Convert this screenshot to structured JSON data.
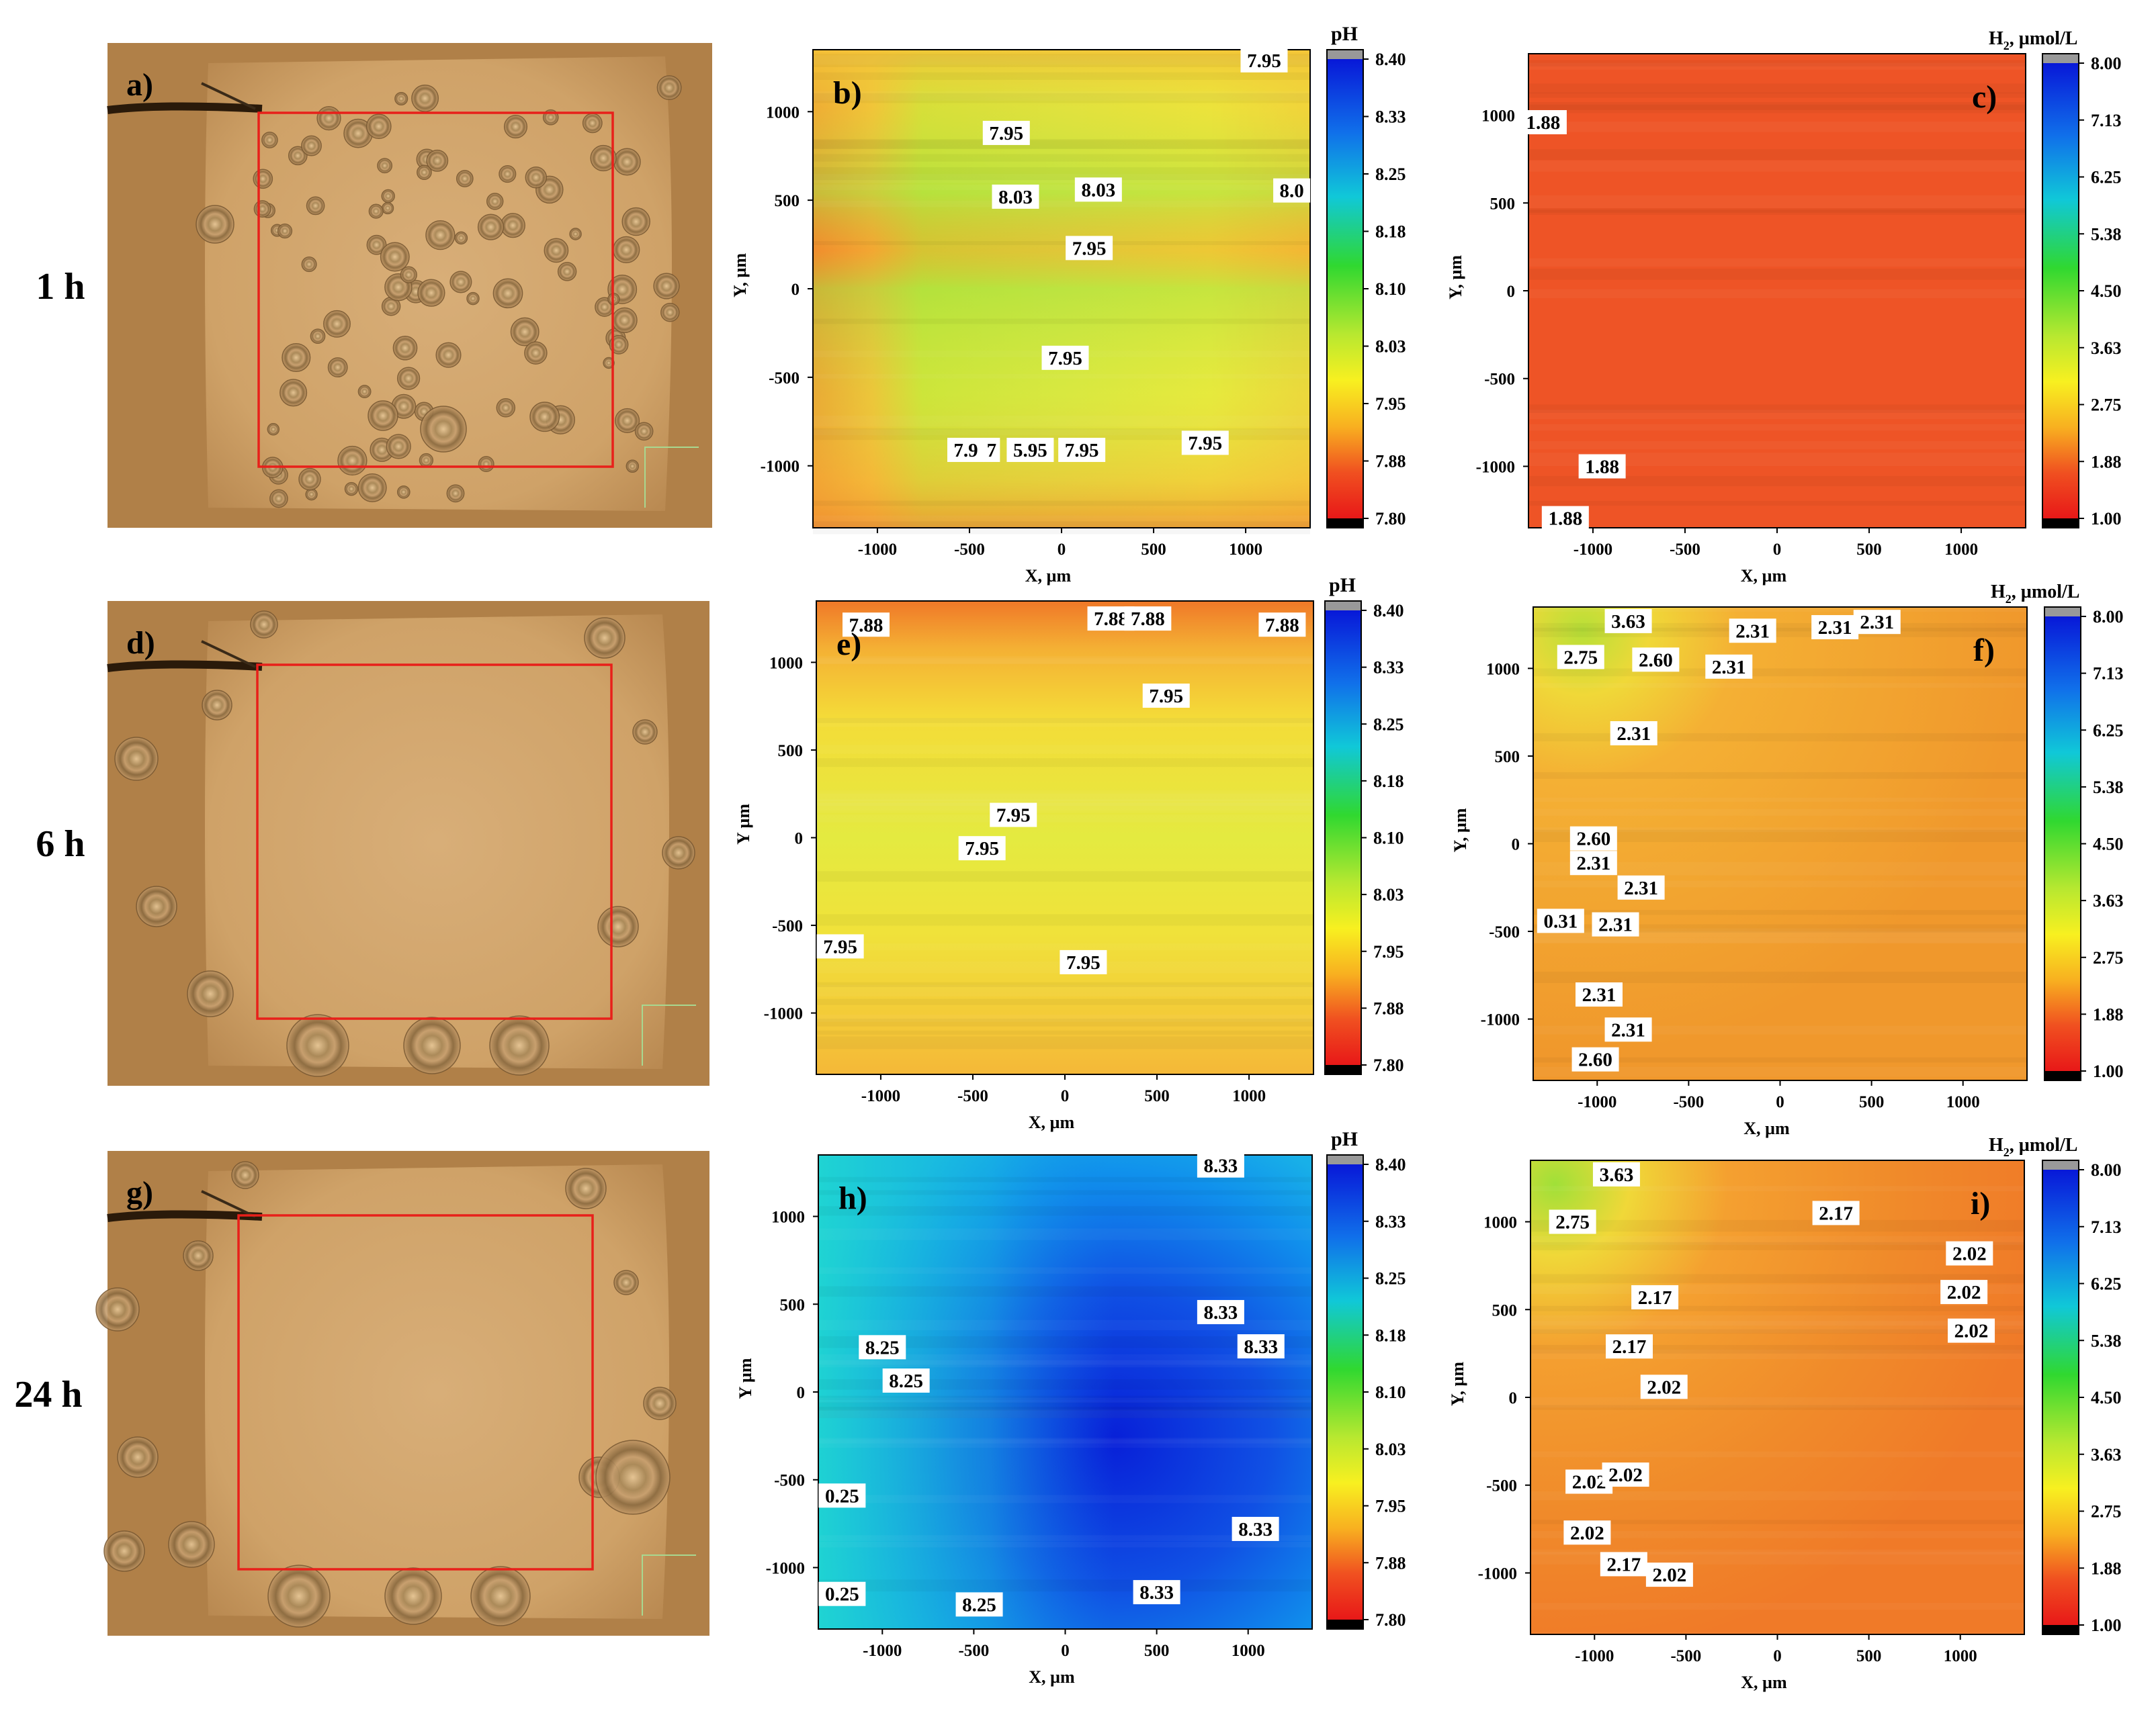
{
  "figure": {
    "description_free": true,
    "time_labels": [
      "1 h",
      "6 h",
      "24 h"
    ]
  },
  "photo_panels": [
    {
      "label": "a)",
      "time": "1 h",
      "bubbles": "many"
    },
    {
      "label": "d)",
      "time": "6 h",
      "bubbles": "perimeter"
    },
    {
      "label": "g)",
      "time": "24 h",
      "bubbles": "perimeter"
    }
  ],
  "colorbars": {
    "ph": {
      "title": "pH",
      "ticks": [
        "8.40",
        "8.33",
        "8.25",
        "8.18",
        "8.10",
        "8.03",
        "7.95",
        "7.88",
        "7.80"
      ],
      "min": 7.8,
      "max": 8.4
    },
    "h2": {
      "title_main": "H",
      "title_sub": "2",
      "title_rest": ", µmol/L",
      "ticks": [
        "8.00",
        "7.13",
        "6.25",
        "5.38",
        "4.50",
        "3.63",
        "2.75",
        "1.88",
        "1.00"
      ],
      "min": 1.0,
      "max": 8.0
    }
  },
  "colors": {
    "photo_base": "#c89a5e",
    "photo_inner": "#d4a870",
    "roi_box": "#e8201a",
    "map_orange": "#f08a28",
    "map_red_orange": "#ee5a24"
  },
  "chart_data": [
    {
      "id": "b",
      "type": "heatmap",
      "panel_label": "b)",
      "variable": "pH",
      "colorbar": "ph",
      "xlabel": "X, µm",
      "ylabel": "Y, µm",
      "xlim": [
        -1350,
        1350
      ],
      "ylim": [
        -1350,
        1350
      ],
      "xticks": [
        -1000,
        -500,
        0,
        500,
        1000
      ],
      "yticks": [
        -1000,
        -500,
        0,
        500,
        1000
      ],
      "show_xlabel": true,
      "annotations": [
        {
          "text": "7.95",
          "x": 1100,
          "y": 1290
        },
        {
          "text": "7.95",
          "x": -300,
          "y": 880
        },
        {
          "text": "8.03",
          "x": -250,
          "y": 520
        },
        {
          "text": "8.03",
          "x": 200,
          "y": 560
        },
        {
          "text": "8.0",
          "x": 1250,
          "y": 555
        },
        {
          "text": "7.95",
          "x": 150,
          "y": 230
        },
        {
          "text": "7.95",
          "x": 20,
          "y": -390
        },
        {
          "text": "7.9",
          "x": -520,
          "y": -910
        },
        {
          "text": "7",
          "x": -380,
          "y": -910
        },
        {
          "text": "5.95",
          "x": -170,
          "y": -910
        },
        {
          "text": "7.95",
          "x": 110,
          "y": -910
        },
        {
          "text": "7.95",
          "x": 780,
          "y": -870
        }
      ]
    },
    {
      "id": "c",
      "type": "heatmap",
      "panel_label": "c)",
      "variable": "H2",
      "colorbar": "h2",
      "xlabel": "X, µm",
      "ylabel": "Y, µm",
      "xlim": [
        -1350,
        1350
      ],
      "ylim": [
        -1350,
        1350
      ],
      "xticks": [
        -1000,
        -500,
        0,
        500,
        1000
      ],
      "yticks": [
        -1000,
        -500,
        0,
        500,
        1000
      ],
      "show_xlabel": true,
      "annotations": [
        {
          "text": "1.88",
          "x": -1270,
          "y": 960
        },
        {
          "text": "1.88",
          "x": -950,
          "y": -1000
        },
        {
          "text": "1.88",
          "x": -1150,
          "y": -1295
        }
      ]
    },
    {
      "id": "e",
      "type": "heatmap",
      "panel_label": "e)",
      "variable": "pH",
      "colorbar": "ph",
      "xlabel": "X, µm",
      "ylabel": "Y µm",
      "xlim": [
        -1350,
        1350
      ],
      "ylim": [
        -1350,
        1350
      ],
      "xticks": [
        -1000,
        -500,
        0,
        500,
        1000
      ],
      "yticks": [
        -1000,
        -500,
        0,
        500,
        1000
      ],
      "show_xlabel": true,
      "annotations": [
        {
          "text": "7.88",
          "x": -1080,
          "y": 1215
        },
        {
          "text": "7.88",
          "x": 250,
          "y": 1250
        },
        {
          "text": "7.88",
          "x": 450,
          "y": 1250
        },
        {
          "text": "7.88",
          "x": 1180,
          "y": 1215
        },
        {
          "text": "7.95",
          "x": 550,
          "y": 810
        },
        {
          "text": "7.95",
          "x": -280,
          "y": 130
        },
        {
          "text": "7.95",
          "x": -450,
          "y": -60
        },
        {
          "text": "7.95",
          "x": -1220,
          "y": -620
        },
        {
          "text": "7.95",
          "x": 100,
          "y": -710
        }
      ]
    },
    {
      "id": "f",
      "type": "heatmap",
      "panel_label": "f)",
      "variable": "H2",
      "colorbar": "h2",
      "xlabel": "X, µm",
      "ylabel": "Y, µm",
      "xlim": [
        -1350,
        1350
      ],
      "ylim": [
        -1350,
        1350
      ],
      "xticks": [
        -1000,
        -500,
        0,
        500,
        1000
      ],
      "yticks": [
        -1000,
        -500,
        0,
        500,
        1000
      ],
      "show_xlabel": true,
      "annotations": [
        {
          "text": "3.63",
          "x": -830,
          "y": 1270
        },
        {
          "text": "2.75",
          "x": -1090,
          "y": 1065
        },
        {
          "text": "2.60",
          "x": -680,
          "y": 1050
        },
        {
          "text": "2.31",
          "x": -150,
          "y": 1215
        },
        {
          "text": "2.31",
          "x": -280,
          "y": 1010
        },
        {
          "text": "2.31",
          "x": 300,
          "y": 1235
        },
        {
          "text": "2.31",
          "x": 530,
          "y": 1265
        },
        {
          "text": "2.31",
          "x": -800,
          "y": 630
        },
        {
          "text": "2.60",
          "x": -1020,
          "y": 30
        },
        {
          "text": "2.31",
          "x": -1020,
          "y": -110
        },
        {
          "text": "2.31",
          "x": -760,
          "y": -250
        },
        {
          "text": "0.31",
          "x": -1200,
          "y": -440
        },
        {
          "text": "2.31",
          "x": -900,
          "y": -460
        },
        {
          "text": "2.31",
          "x": -990,
          "y": -860
        },
        {
          "text": "2.31",
          "x": -830,
          "y": -1060
        },
        {
          "text": "2.60",
          "x": -1010,
          "y": -1230
        }
      ]
    },
    {
      "id": "h",
      "type": "heatmap",
      "panel_label": "h)",
      "variable": "pH",
      "colorbar": "ph",
      "xlabel": "X, µm",
      "ylabel": "Y µm",
      "xlim": [
        -1350,
        1350
      ],
      "ylim": [
        -1350,
        1350
      ],
      "xticks": [
        -1000,
        -500,
        0,
        500,
        1000
      ],
      "yticks": [
        -1000,
        -500,
        0,
        500,
        1000
      ],
      "show_xlabel": true,
      "annotations": [
        {
          "text": "8.33",
          "x": 850,
          "y": 1290
        },
        {
          "text": "8.33",
          "x": 850,
          "y": 455
        },
        {
          "text": "8.33",
          "x": 1070,
          "y": 260
        },
        {
          "text": "8.25",
          "x": -1000,
          "y": 255
        },
        {
          "text": "8.25",
          "x": -870,
          "y": 65
        },
        {
          "text": "0.25",
          "x": -1220,
          "y": -590
        },
        {
          "text": "8.33",
          "x": 1040,
          "y": -780
        },
        {
          "text": "0.25",
          "x": -1220,
          "y": -1150
        },
        {
          "text": "8.33",
          "x": 500,
          "y": -1140
        },
        {
          "text": "8.25",
          "x": -470,
          "y": -1210
        }
      ]
    },
    {
      "id": "i",
      "type": "heatmap",
      "panel_label": "i)",
      "variable": "H2",
      "colorbar": "h2",
      "xlabel": "X, µm",
      "ylabel": "Y, µm",
      "xlim": [
        -1350,
        1350
      ],
      "ylim": [
        -1350,
        1350
      ],
      "xticks": [
        -1000,
        -500,
        0,
        500,
        1000
      ],
      "yticks": [
        -1000,
        -500,
        0,
        500,
        1000
      ],
      "show_xlabel": true,
      "annotations": [
        {
          "text": "3.63",
          "x": -880,
          "y": 1270
        },
        {
          "text": "2.75",
          "x": -1120,
          "y": 1000
        },
        {
          "text": "2.17",
          "x": 320,
          "y": 1050
        },
        {
          "text": "2.02",
          "x": 1050,
          "y": 820
        },
        {
          "text": "2.02",
          "x": 1020,
          "y": 600
        },
        {
          "text": "2.02",
          "x": 1060,
          "y": 380
        },
        {
          "text": "2.17",
          "x": -670,
          "y": 570
        },
        {
          "text": "2.17",
          "x": -810,
          "y": 290
        },
        {
          "text": "2.02",
          "x": -620,
          "y": 60
        },
        {
          "text": "2.02",
          "x": -1030,
          "y": -480
        },
        {
          "text": "2.02",
          "x": -830,
          "y": -440
        },
        {
          "text": "2.02",
          "x": -1040,
          "y": -770
        },
        {
          "text": "2.17",
          "x": -840,
          "y": -950
        },
        {
          "text": "2.02",
          "x": -590,
          "y": -1010
        }
      ]
    }
  ]
}
